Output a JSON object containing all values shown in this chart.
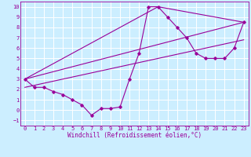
{
  "xlabel": "Windchill (Refroidissement éolien,°C)",
  "bg_color": "#cceeff",
  "grid_color": "#ffffff",
  "line_color": "#990099",
  "xlim": [
    -0.5,
    23.5
  ],
  "ylim": [
    -1.5,
    10.5
  ],
  "xticks": [
    0,
    1,
    2,
    3,
    4,
    5,
    6,
    7,
    8,
    9,
    10,
    11,
    12,
    13,
    14,
    15,
    16,
    17,
    18,
    19,
    20,
    21,
    22,
    23
  ],
  "yticks": [
    -1,
    0,
    1,
    2,
    3,
    4,
    5,
    6,
    7,
    8,
    9,
    10
  ],
  "curve1_x": [
    0,
    1,
    2,
    3,
    4,
    5,
    6,
    7,
    8,
    9,
    10,
    11,
    12,
    13,
    14,
    15,
    16,
    17,
    18,
    19,
    20,
    21,
    22,
    23
  ],
  "curve1_y": [
    3.0,
    2.2,
    2.2,
    1.8,
    1.5,
    1.0,
    0.5,
    -0.5,
    0.15,
    0.15,
    0.3,
    3.0,
    5.5,
    10.0,
    10.0,
    9.0,
    8.0,
    7.0,
    5.5,
    5.0,
    5.0,
    5.0,
    6.0,
    8.5
  ],
  "line1_x": [
    0,
    23
  ],
  "line1_y": [
    3.0,
    8.5
  ],
  "line2_x": [
    0,
    14,
    23
  ],
  "line2_y": [
    3.0,
    10.0,
    8.5
  ],
  "line3_x": [
    0,
    23
  ],
  "line3_y": [
    2.2,
    6.8
  ],
  "xlabel_fontsize": 5.5,
  "tick_fontsize": 5.0
}
